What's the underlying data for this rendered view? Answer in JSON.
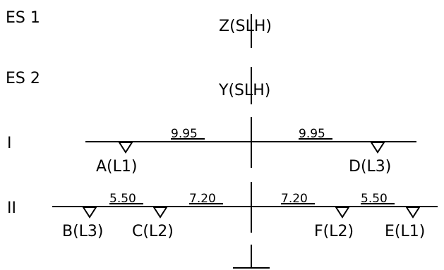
{
  "levels": [
    {
      "label": "ES 1",
      "marker": "Z(SLH)"
    },
    {
      "label": "ES 2",
      "marker": "Y(SLH)"
    },
    {
      "label": "I"
    },
    {
      "label": "II"
    }
  ],
  "spans": {
    "level_I": [
      "9.95",
      "9.95"
    ],
    "level_II": [
      "5.50",
      "7.20",
      "7.20",
      "5.50"
    ]
  },
  "supports": {
    "level_I": [
      "A(L1)",
      "D(L3)"
    ],
    "level_II": [
      "B(L3)",
      "C(L2)",
      "F(L2)",
      "E(L1)"
    ]
  }
}
